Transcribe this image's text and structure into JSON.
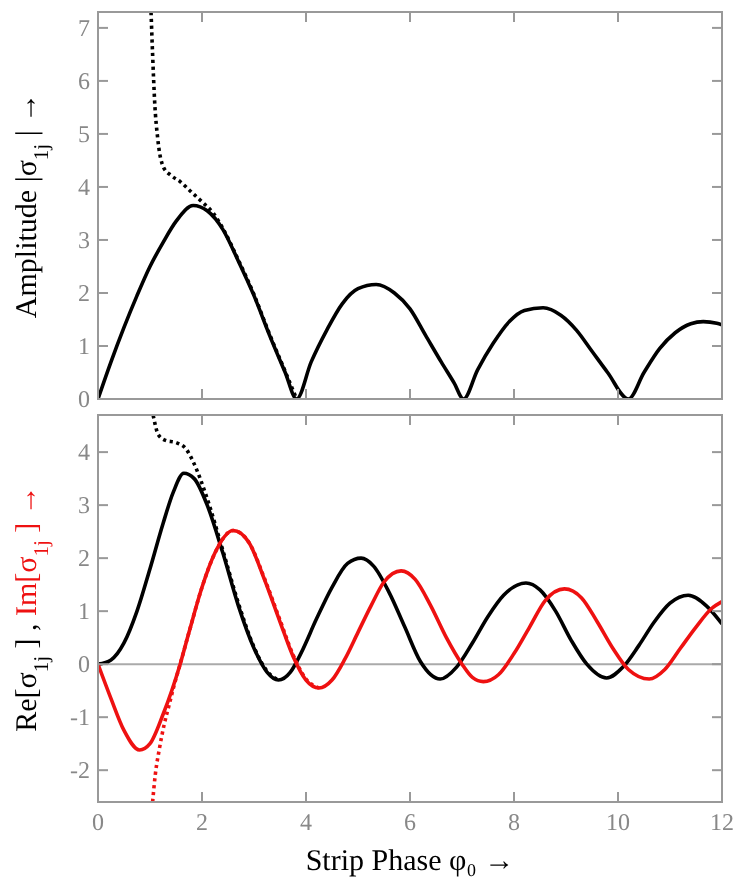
{
  "chart_data": [
    {
      "type": "line",
      "ylabel": "Amplitude |σ$_{1j}$| →",
      "xlim": [
        0,
        12
      ],
      "xticks": [
        0,
        2,
        4,
        6,
        8,
        10,
        12
      ],
      "ylim": [
        0,
        7.3
      ],
      "yticks": [
        0,
        1,
        2,
        3,
        4,
        5,
        6,
        7
      ],
      "tick_labels": "y",
      "series": [
        {
          "color": "#000000",
          "line_style": "solid",
          "x": [
            0,
            0.25,
            0.5,
            0.75,
            1.0,
            1.25,
            1.5,
            1.83,
            2.1,
            2.4,
            2.7,
            3.0,
            3.3,
            3.6,
            3.82,
            4.1,
            4.4,
            4.7,
            5.0,
            5.35,
            5.7,
            6.0,
            6.3,
            6.6,
            6.85,
            7.03,
            7.3,
            7.6,
            7.9,
            8.2,
            8.56,
            8.9,
            9.2,
            9.5,
            9.8,
            10.2,
            10.5,
            10.8,
            11.1,
            11.4,
            11.64,
            11.9,
            12
          ],
          "values": [
            0,
            0.7,
            1.35,
            1.95,
            2.5,
            2.95,
            3.35,
            3.65,
            3.55,
            3.2,
            2.6,
            1.95,
            1.2,
            0.5,
            0,
            0.7,
            1.3,
            1.8,
            2.08,
            2.16,
            2.0,
            1.7,
            1.2,
            0.7,
            0.3,
            0,
            0.55,
            1.05,
            1.45,
            1.67,
            1.72,
            1.58,
            1.3,
            0.9,
            0.5,
            0,
            0.5,
            0.95,
            1.25,
            1.42,
            1.46,
            1.43,
            1.4
          ]
        },
        {
          "color": "#000000",
          "line_style": "dotted",
          "x": [
            1.02,
            1.05,
            1.09,
            1.15,
            1.26,
            1.4,
            1.58,
            1.8,
            2.0,
            2.22,
            2.4,
            2.7,
            3.0,
            3.3,
            3.6,
            3.82
          ],
          "values": [
            7.3,
            6.5,
            5.6,
            4.9,
            4.37,
            4.22,
            4.1,
            3.9,
            3.72,
            3.5,
            3.22,
            2.62,
            1.97,
            1.22,
            0.52,
            0
          ]
        }
      ]
    },
    {
      "type": "line",
      "ylabel": "Re[σ$_{1j}$] , Im[σ$_{1j}$] →",
      "xlabel": "Strip Phase φ₀ →",
      "xlim": [
        0,
        12
      ],
      "xticks": [
        0,
        2,
        4,
        6,
        8,
        10,
        12
      ],
      "ylim": [
        -2.6,
        4.7
      ],
      "yticks": [
        -2,
        -1,
        0,
        1,
        2,
        3,
        4
      ],
      "ref_lines": [
        {
          "axis": "y",
          "value": 0,
          "color": "#aaaaaa"
        }
      ],
      "series": [
        {
          "color": "#000000",
          "line_style": "solid",
          "x": [
            0,
            0.25,
            0.5,
            0.75,
            1.0,
            1.25,
            1.45,
            1.65,
            1.85,
            2.1,
            2.4,
            2.7,
            3.0,
            3.25,
            3.47,
            3.7,
            3.9,
            4.2,
            4.5,
            4.8,
            5.06,
            5.3,
            5.6,
            5.9,
            6.2,
            6.58,
            6.9,
            7.2,
            7.5,
            7.8,
            8.23,
            8.5,
            8.8,
            9.1,
            9.4,
            9.78,
            10.1,
            10.4,
            10.7,
            11.0,
            11.35,
            11.7,
            12
          ],
          "values": [
            0,
            0.08,
            0.4,
            1.0,
            1.8,
            2.65,
            3.25,
            3.6,
            3.5,
            3.0,
            2.1,
            1.1,
            0.3,
            -0.15,
            -0.3,
            -0.15,
            0.2,
            0.85,
            1.45,
            1.9,
            2.0,
            1.85,
            1.35,
            0.7,
            0.05,
            -0.28,
            -0.05,
            0.4,
            0.9,
            1.3,
            1.53,
            1.4,
            1.0,
            0.45,
            0,
            -0.26,
            -0.05,
            0.35,
            0.8,
            1.15,
            1.3,
            1.1,
            0.76
          ]
        },
        {
          "color": "#000000",
          "line_style": "dotted",
          "x": [
            1.06,
            1.16,
            1.3,
            1.5,
            1.7,
            1.83,
            2.08,
            2.4,
            2.7,
            3.0,
            3.25,
            3.47
          ],
          "values": [
            4.7,
            4.33,
            4.22,
            4.18,
            4.05,
            3.82,
            3.18,
            2.15,
            1.15,
            0.32,
            -0.13,
            -0.3
          ]
        },
        {
          "color": "#ee1111",
          "line_style": "solid",
          "x": [
            0,
            0.25,
            0.5,
            0.8,
            1.0,
            1.25,
            1.58,
            1.75,
            2.0,
            2.25,
            2.6,
            2.9,
            3.2,
            3.5,
            3.75,
            4.0,
            4.25,
            4.5,
            4.75,
            5.0,
            5.25,
            5.5,
            5.83,
            6.1,
            6.4,
            6.7,
            7.0,
            7.2,
            7.41,
            7.7,
            8.0,
            8.3,
            8.6,
            8.97,
            9.3,
            9.6,
            9.9,
            10.2,
            10.6,
            10.9,
            11.2,
            11.5,
            11.8,
            12
          ],
          "values": [
            0,
            -0.65,
            -1.25,
            -1.62,
            -1.5,
            -0.95,
            0,
            0.6,
            1.45,
            2.1,
            2.52,
            2.3,
            1.6,
            0.8,
            0.15,
            -0.3,
            -0.45,
            -0.3,
            0.1,
            0.6,
            1.1,
            1.55,
            1.76,
            1.6,
            1.1,
            0.5,
            0,
            -0.25,
            -0.33,
            -0.2,
            0.2,
            0.7,
            1.2,
            1.42,
            1.25,
            0.8,
            0.3,
            -0.1,
            -0.28,
            -0.1,
            0.3,
            0.7,
            1.05,
            1.18
          ]
        },
        {
          "color": "#ee1111",
          "line_style": "dotted",
          "x": [
            1.05,
            1.1,
            1.18,
            1.27,
            1.36,
            1.45,
            1.58,
            1.75,
            2.0,
            2.25,
            2.6,
            2.9,
            3.2,
            3.5,
            3.75,
            4.0,
            4.25
          ],
          "values": [
            -2.6,
            -2.1,
            -1.6,
            -1.15,
            -0.8,
            -0.45,
            0,
            0.6,
            1.45,
            2.1,
            2.52,
            2.3,
            1.62,
            0.83,
            0.18,
            -0.28,
            -0.45
          ]
        }
      ]
    }
  ]
}
